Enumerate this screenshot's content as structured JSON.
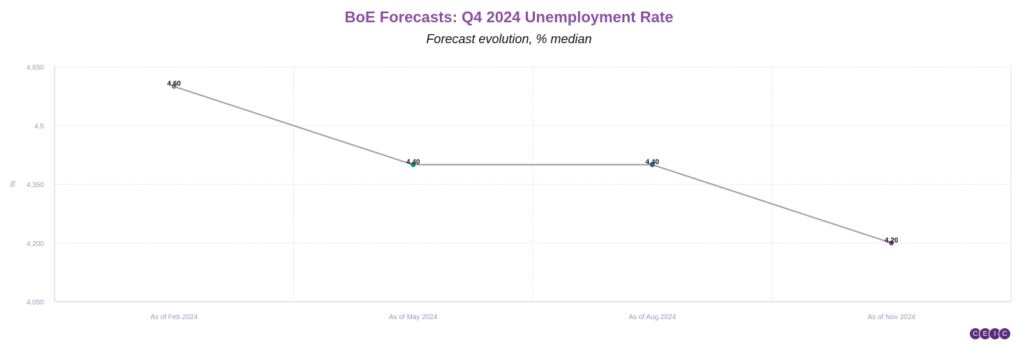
{
  "chart_data": {
    "type": "line",
    "title": "BoE Forecasts: Q4 2024 Unemployment Rate",
    "subtitle": "Forecast evolution, % median",
    "ylabel": "%",
    "xlabel": "",
    "categories": [
      "As of Feb 2024",
      "As of May 2024",
      "As of Aug 2024",
      "As of Nov 2024"
    ],
    "values": [
      4.6,
      4.4,
      4.4,
      4.2
    ],
    "data_labels": [
      "4.60",
      "4.40",
      "4.40",
      "4.20"
    ],
    "point_colors": [
      "#888888",
      "#00897b",
      "#1565c0",
      "#7b3f8c"
    ],
    "line_color": "#9e9e9e",
    "ylim": [
      4.05,
      4.65
    ],
    "y_ticks": [
      4.05,
      4.2,
      4.35,
      4.5,
      4.65
    ],
    "y_tick_labels": [
      "4.050",
      "4.200",
      "4.350",
      "4.5",
      "4.650"
    ],
    "grid": true
  },
  "logo": {
    "letters": [
      "C",
      "E",
      "I",
      "C"
    ]
  }
}
